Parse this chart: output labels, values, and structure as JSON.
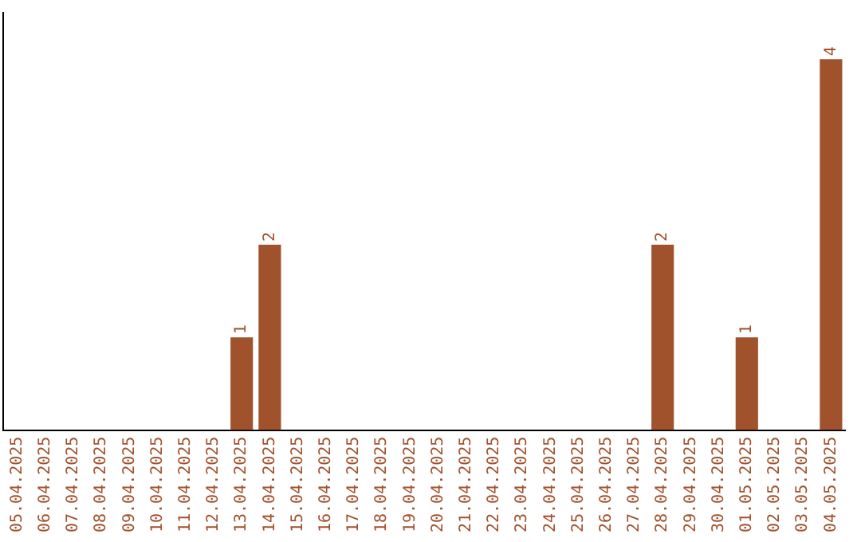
{
  "chart_data": {
    "type": "bar",
    "categories": [
      "05.04.2025",
      "06.04.2025",
      "07.04.2025",
      "08.04.2025",
      "09.04.2025",
      "10.04.2025",
      "11.04.2025",
      "12.04.2025",
      "13.04.2025",
      "14.04.2025",
      "15.04.2025",
      "16.04.2025",
      "17.04.2025",
      "18.04.2025",
      "19.04.2025",
      "20.04.2025",
      "21.04.2025",
      "22.04.2025",
      "23.04.2025",
      "24.04.2025",
      "25.04.2025",
      "26.04.2025",
      "27.04.2025",
      "28.04.2025",
      "29.04.2025",
      "30.04.2025",
      "01.05.2025",
      "02.05.2025",
      "03.05.2025",
      "04.05.2025"
    ],
    "values": [
      0,
      0,
      0,
      0,
      0,
      0,
      0,
      0,
      1,
      2,
      0,
      0,
      0,
      0,
      0,
      0,
      0,
      0,
      0,
      0,
      0,
      0,
      0,
      2,
      0,
      0,
      1,
      0,
      0,
      4
    ],
    "value_labels": [
      null,
      null,
      null,
      null,
      null,
      null,
      null,
      null,
      "1",
      "2",
      null,
      null,
      null,
      null,
      null,
      null,
      null,
      null,
      null,
      null,
      null,
      null,
      null,
      "2",
      null,
      null,
      "1",
      null,
      null,
      "4"
    ],
    "color": "#a0522d",
    "tick_labels": "x",
    "grid": false,
    "legend": false
  }
}
